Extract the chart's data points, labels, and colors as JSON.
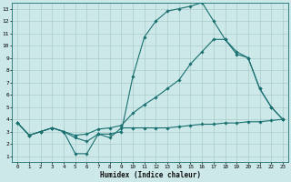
{
  "background_color": "#cce8e8",
  "grid_color": "#aacccc",
  "line_color": "#1a7070",
  "xlabel": "Humidex (Indice chaleur)",
  "xlim": [
    -0.5,
    23.5
  ],
  "ylim": [
    0.5,
    13.5
  ],
  "xticks": [
    0,
    1,
    2,
    3,
    4,
    5,
    6,
    7,
    8,
    9,
    10,
    11,
    12,
    13,
    14,
    15,
    16,
    17,
    18,
    19,
    20,
    21,
    22,
    23
  ],
  "yticks": [
    1,
    2,
    3,
    4,
    5,
    6,
    7,
    8,
    9,
    10,
    11,
    12,
    13
  ],
  "line1_x": [
    0,
    1,
    2,
    3,
    4,
    5,
    6,
    7,
    8,
    9,
    10,
    11,
    12,
    13,
    14,
    15,
    16,
    17,
    18,
    19,
    20,
    21,
    22,
    23
  ],
  "line1_y": [
    3.7,
    2.7,
    3.0,
    3.3,
    3.0,
    1.2,
    1.2,
    2.8,
    2.5,
    3.3,
    3.3,
    3.3,
    3.3,
    3.3,
    3.4,
    3.5,
    3.6,
    3.6,
    3.7,
    3.7,
    3.8,
    3.8,
    3.9,
    4.0
  ],
  "line2_x": [
    0,
    1,
    2,
    3,
    4,
    5,
    6,
    7,
    8,
    9,
    10,
    11,
    12,
    13,
    14,
    15,
    16,
    17,
    18,
    19,
    20,
    21,
    22,
    23
  ],
  "line2_y": [
    3.7,
    2.7,
    3.0,
    3.3,
    3.0,
    2.7,
    2.8,
    3.2,
    3.3,
    3.5,
    4.5,
    5.2,
    5.8,
    6.5,
    7.2,
    8.5,
    9.5,
    10.5,
    10.5,
    9.5,
    9.0,
    6.5,
    5.0,
    4.0
  ],
  "line3_x": [
    0,
    1,
    2,
    3,
    4,
    5,
    6,
    7,
    8,
    9,
    10,
    11,
    12,
    13,
    14,
    15,
    16,
    17,
    18,
    19,
    20,
    21,
    22,
    23
  ],
  "line3_y": [
    3.7,
    2.7,
    3.0,
    3.3,
    3.0,
    2.5,
    2.2,
    2.8,
    2.8,
    3.0,
    7.5,
    10.7,
    12.0,
    12.8,
    13.0,
    13.2,
    13.5,
    12.0,
    10.5,
    9.3,
    9.0,
    6.5,
    5.0,
    4.0
  ]
}
